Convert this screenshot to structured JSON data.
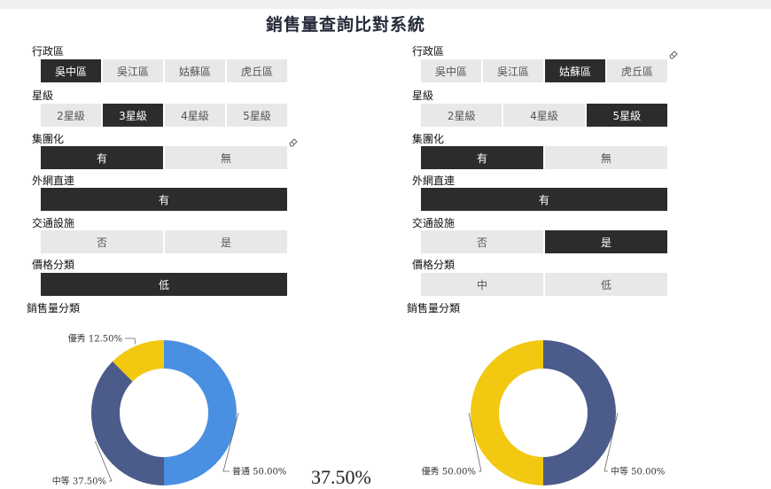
{
  "title": "銷售量查詢比對系統",
  "left": {
    "filters": [
      {
        "label": "行政區",
        "options": [
          "吳中區",
          "吳江區",
          "姑蘇區",
          "虎丘區"
        ],
        "selected": [
          "吳中區"
        ]
      },
      {
        "label": "星級",
        "options": [
          "2星級",
          "3星級",
          "4星級",
          "5星級"
        ],
        "selected": [
          "3星級"
        ]
      },
      {
        "label": "集團化",
        "options": [
          "有",
          "無"
        ],
        "selected": [
          "有"
        ]
      },
      {
        "label": "外網直連",
        "options": [
          "有"
        ],
        "selected": [
          "有"
        ]
      },
      {
        "label": "交通設施",
        "options": [
          "否",
          "是"
        ],
        "selected": []
      },
      {
        "label": "價格分類",
        "options": [
          "低"
        ],
        "selected": [
          "低"
        ]
      }
    ],
    "chart_label": "銷售量分類"
  },
  "right": {
    "filters": [
      {
        "label": "行政區",
        "options": [
          "吳中區",
          "吳江區",
          "姑蘇區",
          "虎丘區"
        ],
        "selected": [
          "姑蘇區"
        ]
      },
      {
        "label": "星級",
        "options": [
          "2星級",
          "4星級",
          "5星級"
        ],
        "selected": [
          "5星級"
        ]
      },
      {
        "label": "集團化",
        "options": [
          "有",
          "無"
        ],
        "selected": [
          "有"
        ]
      },
      {
        "label": "外網直連",
        "options": [
          "有"
        ],
        "selected": [
          "有"
        ]
      },
      {
        "label": "交通設施",
        "options": [
          "否",
          "是"
        ],
        "selected": [
          "是"
        ]
      },
      {
        "label": "價格分類",
        "options": [
          "中",
          "低"
        ],
        "selected": []
      }
    ],
    "chart_label": "銷售量分類"
  },
  "center_value": "37.50%",
  "colors": {
    "selected_bg": "#2c2c2c",
    "unselected_bg": "#e8e8e8",
    "blue": "#4a90e2",
    "navy": "#4b5b8a",
    "yellow": "#f2c811"
  },
  "chart_data": [
    {
      "type": "pie",
      "categories": [
        "普通",
        "中等",
        "優秀"
      ],
      "values": [
        50.0,
        37.5,
        12.5
      ],
      "labels": [
        "普通 50.00%",
        "中等 37.50%",
        "優秀 12.50%"
      ],
      "colors": [
        "#4a90e2",
        "#4b5b8a",
        "#f2c811"
      ]
    },
    {
      "type": "pie",
      "categories": [
        "中等",
        "優秀"
      ],
      "values": [
        50.0,
        50.0
      ],
      "labels": [
        "中等 50.00%",
        "優秀 50.00%"
      ],
      "colors": [
        "#4b5b8a",
        "#f2c811"
      ]
    }
  ]
}
